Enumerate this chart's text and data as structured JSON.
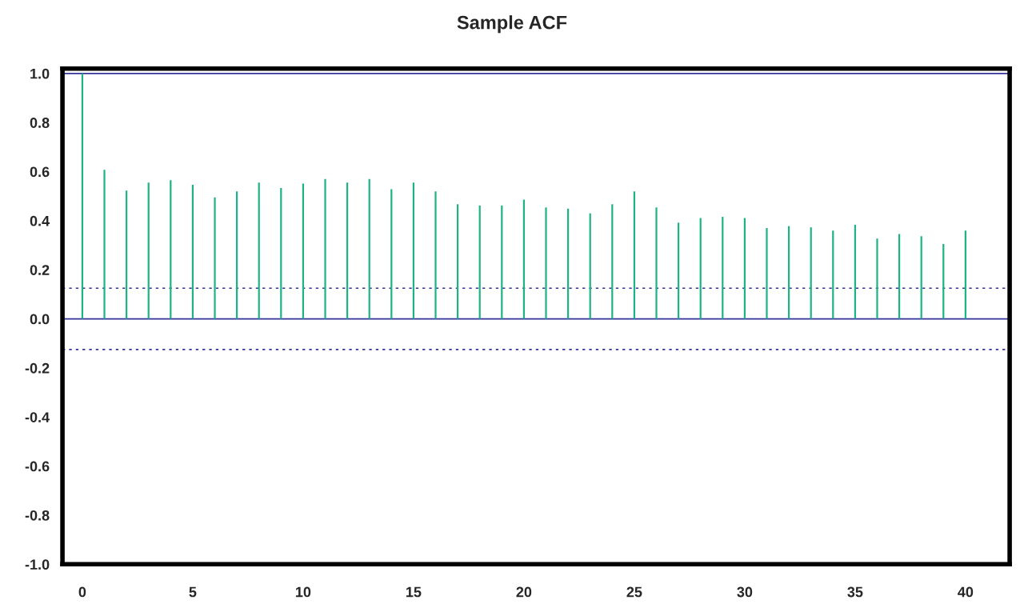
{
  "chart_data": {
    "type": "bar",
    "title": "Sample ACF",
    "x": [
      0,
      1,
      2,
      3,
      4,
      5,
      6,
      7,
      8,
      9,
      10,
      11,
      12,
      13,
      14,
      15,
      16,
      17,
      18,
      19,
      20,
      21,
      22,
      23,
      24,
      25,
      26,
      27,
      28,
      29,
      30,
      31,
      32,
      33,
      34,
      35,
      36,
      37,
      38,
      39,
      40
    ],
    "values": [
      1.0,
      0.607,
      0.523,
      0.555,
      0.565,
      0.546,
      0.495,
      0.519,
      0.555,
      0.533,
      0.551,
      0.57,
      0.555,
      0.57,
      0.528,
      0.555,
      0.519,
      0.467,
      0.462,
      0.462,
      0.486,
      0.454,
      0.449,
      0.43,
      0.467,
      0.519,
      0.454,
      0.392,
      0.411,
      0.416,
      0.411,
      0.37,
      0.378,
      0.373,
      0.36,
      0.383,
      0.327,
      0.346,
      0.337,
      0.305,
      0.36
    ],
    "color": "#1db386",
    "xlim": [
      -0.9,
      42
    ],
    "xticks": [
      0,
      5,
      10,
      15,
      20,
      25,
      30,
      35,
      40
    ],
    "ylim": [
      -1.0,
      1.02
    ],
    "yticks": [
      {
        "value": -1.0,
        "label": "-1.0"
      },
      {
        "value": -0.8,
        "label": "-0.8"
      },
      {
        "value": -0.6,
        "label": "-0.6"
      },
      {
        "value": -0.4,
        "label": "-0.4"
      },
      {
        "value": -0.2,
        "label": "-0.2"
      },
      {
        "value": 0.0,
        "label": "0.0"
      },
      {
        "value": 0.2,
        "label": "0.2"
      },
      {
        "value": 0.4,
        "label": "0.4"
      },
      {
        "value": 0.6,
        "label": "0.6"
      },
      {
        "value": 0.8,
        "label": "0.8"
      },
      {
        "value": 1.0,
        "label": "1.0"
      }
    ],
    "ref_lines": [
      {
        "axis": "y",
        "value": 1.0,
        "color": "#333399",
        "line_style": "solid"
      },
      {
        "axis": "y",
        "value": 0.0,
        "color": "#333399",
        "line_style": "solid"
      },
      {
        "axis": "y",
        "value": 0.125,
        "color": "#333399",
        "line_style": "dotted"
      },
      {
        "axis": "y",
        "value": -0.125,
        "color": "#333399",
        "line_style": "dotted"
      }
    ],
    "grid": false,
    "legend": false
  }
}
